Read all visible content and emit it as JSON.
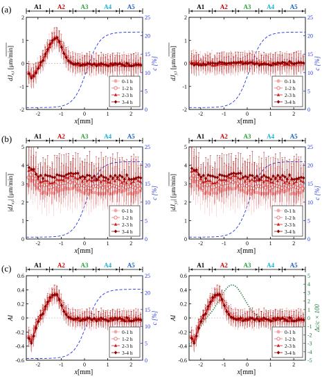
{
  "figure": {
    "panel_labels": [
      "(a)",
      "(b)",
      "(c)"
    ],
    "region_labels": [
      "A1",
      "A2",
      "A3",
      "A4",
      "A5"
    ],
    "region_colors": [
      "#000000",
      "#cc0000",
      "#2e9e3e",
      "#1fb0d8",
      "#1f5fbf"
    ],
    "colors": {
      "s0": "#f4a6a6",
      "s1": "#e86a6a",
      "s2": "#cc2020",
      "s3": "#8b0000",
      "conc": "#2233dd",
      "dc": "#1e7a3a",
      "axis": "#000000"
    }
  },
  "chart_data": [
    {
      "id": "a-left",
      "type": "line",
      "row": 0,
      "col": 0,
      "xlabel": "x [mm]",
      "ylabel": "d J_x,i [μm/min]",
      "ylabel_main": "dJ",
      "ylabel_sub": "x,i",
      "ylabel_unit": " [μm/min]",
      "xlim": [
        -2.5,
        2.5
      ],
      "ylim": [
        -2,
        2
      ],
      "yticks": [
        -2,
        -1,
        0,
        1,
        2
      ],
      "xticks": [
        -2,
        -1,
        0,
        1,
        2
      ],
      "right_axis": {
        "label": "c [%]",
        "lim": [
          0,
          25
        ],
        "ticks": [
          0,
          5,
          10,
          15,
          20,
          25
        ]
      },
      "legend": [
        "0-1 h",
        "1-2 h",
        "2-3 h",
        "3-4 h"
      ],
      "legend_position": "bottom-right"
    },
    {
      "id": "a-right",
      "type": "line",
      "row": 0,
      "col": 1,
      "xlabel": "x [mm]",
      "ylabel": "d J_y,i [μm/min]",
      "ylabel_main": "dJ",
      "ylabel_sub": "y,i",
      "ylabel_unit": " [μm/min]",
      "xlim": [
        -2.5,
        2.5
      ],
      "ylim": [
        -2,
        2
      ],
      "yticks": [
        -2,
        -1,
        0,
        1,
        2
      ],
      "xticks": [
        -2,
        -1,
        0,
        1,
        2
      ],
      "right_axis": {
        "label": "c [%]",
        "lim": [
          0,
          25
        ],
        "ticks": [
          0,
          5,
          10,
          15,
          20,
          25
        ]
      },
      "legend": [
        "0-1 h",
        "1-2 h",
        "2-3 h",
        "3-4 h"
      ],
      "legend_position": "bottom-right"
    },
    {
      "id": "b-left",
      "type": "line",
      "row": 1,
      "col": 0,
      "xlabel": "x [mm]",
      "ylabel": "|d J_x,i| [μm/min]",
      "ylabel_main": "|dJ",
      "ylabel_sub": "x,i",
      "ylabel_unit": "| [μm/min]",
      "xlim": [
        -2.5,
        2.5
      ],
      "ylim": [
        0,
        5
      ],
      "yticks": [
        0,
        1,
        2,
        3,
        4,
        5
      ],
      "xticks": [
        -2,
        -1,
        0,
        1,
        2
      ],
      "right_axis": {
        "label": "c [%]",
        "lim": [
          0,
          25
        ],
        "ticks": [
          0,
          5,
          10,
          15,
          20,
          25
        ]
      },
      "legend": [
        "0-1 h",
        "1-2 h",
        "2-3 h",
        "3-4 h"
      ],
      "legend_position": "bottom-right"
    },
    {
      "id": "b-right",
      "type": "line",
      "row": 1,
      "col": 1,
      "xlabel": "x [mm]",
      "ylabel": "|d J_y,i| [μm/min]",
      "ylabel_main": "|dJ",
      "ylabel_sub": "y,i",
      "ylabel_unit": "| [μm/min]",
      "xlim": [
        -2.5,
        2.5
      ],
      "ylim": [
        0,
        5
      ],
      "yticks": [
        0,
        1,
        2,
        3,
        4,
        5
      ],
      "xticks": [
        -2,
        -1,
        0,
        1,
        2
      ],
      "right_axis": {
        "label": "c [%]",
        "lim": [
          0,
          25
        ],
        "ticks": [
          0,
          5,
          10,
          15,
          20,
          25
        ]
      },
      "legend": [
        "0-1 h",
        "1-2 h",
        "2-3 h",
        "3-4 h"
      ],
      "legend_position": "bottom-right"
    },
    {
      "id": "c-left",
      "type": "line",
      "row": 2,
      "col": 0,
      "xlabel": "x [mm]",
      "ylabel": "AI",
      "ylabel_main": "AI",
      "ylabel_sub": "",
      "ylabel_unit": "",
      "xlim": [
        -2.5,
        2.5
      ],
      "ylim": [
        -0.6,
        0.6
      ],
      "yticks": [
        -0.6,
        -0.4,
        -0.2,
        0,
        0.2,
        0.4,
        0.6
      ],
      "xticks": [
        -2,
        -1,
        0,
        1,
        2
      ],
      "right_axis": {
        "label": "c [%]",
        "lim": [
          0,
          25
        ],
        "ticks": [
          0,
          5,
          10,
          15,
          20,
          25
        ]
      },
      "legend": [
        "0-1 h",
        "1-2 h",
        "2-3 h",
        "3-4 h"
      ],
      "legend_position": "bottom-right"
    },
    {
      "id": "c-right",
      "type": "line",
      "row": 2,
      "col": 1,
      "xlabel": "x [mm]",
      "ylabel": "AI",
      "ylabel_main": "AI",
      "ylabel_sub": "",
      "ylabel_unit": "",
      "xlim": [
        -2.5,
        2.5
      ],
      "ylim": [
        -0.6,
        0.6
      ],
      "yticks": [
        -0.6,
        -0.4,
        -0.2,
        0,
        0.2,
        0.4,
        0.6
      ],
      "xticks": [
        -2,
        -1,
        0,
        1,
        2
      ],
      "right_axis": {
        "label": "Δc/c × 100",
        "lim": [
          -5,
          5
        ],
        "ticks": [
          -5,
          -4,
          -3,
          -2,
          -1,
          0,
          1,
          2,
          3,
          4,
          5
        ]
      },
      "legend": [
        "0-1 h",
        "1-2 h",
        "2-3 h",
        "3-4 h"
      ],
      "legend_position": "bottom-right"
    }
  ]
}
